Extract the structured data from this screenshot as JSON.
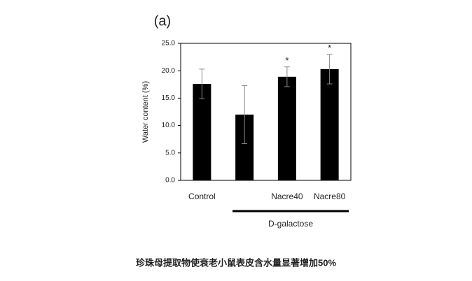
{
  "chart_data": {
    "type": "bar",
    "panel_label": "(a)",
    "ylabel": "Water content (%)",
    "categories": [
      "Control",
      null,
      "Nacre40",
      "Nacre80"
    ],
    "values": [
      17.6,
      12.0,
      18.9,
      20.3
    ],
    "errors": [
      2.7,
      5.3,
      1.8,
      2.7
    ],
    "significance": [
      null,
      null,
      "*",
      "*"
    ],
    "color": "#000000",
    "group_label": "D-galactose",
    "ylim": [
      0,
      25
    ],
    "yticks": [
      {
        "value": 0,
        "label": "0.0"
      },
      {
        "value": 5,
        "label": "5.0"
      },
      {
        "value": 10,
        "label": "10.0"
      },
      {
        "value": 15,
        "label": "15.0"
      },
      {
        "value": 20,
        "label": "20.0"
      },
      {
        "value": 25,
        "label": "25.0"
      }
    ],
    "caption": "珍珠母提取物使衰老小鼠表皮含水量显著增加50%"
  }
}
